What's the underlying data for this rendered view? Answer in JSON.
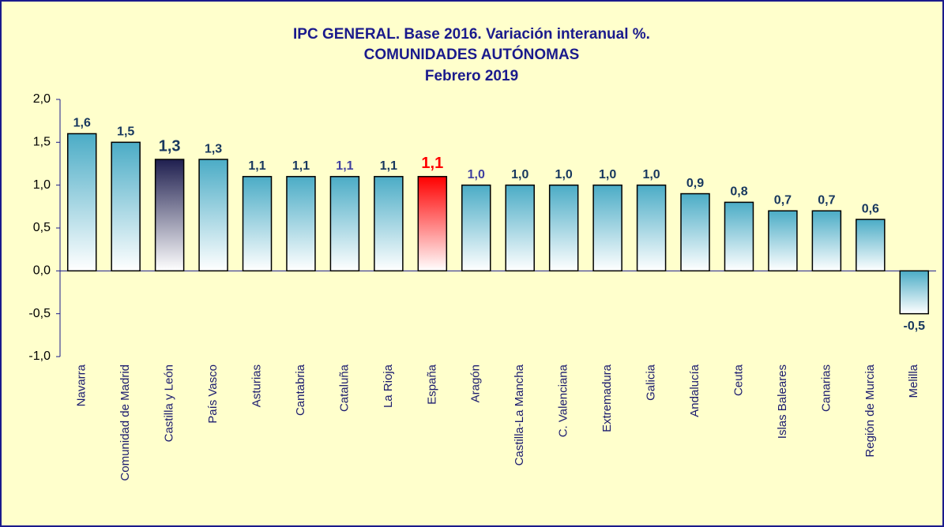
{
  "chart_data": {
    "type": "bar",
    "title": [
      "IPC GENERAL. Base 2016. Variación interanual %.",
      "COMUNIDADES AUTÓNOMAS",
      "Febrero 2019"
    ],
    "categories": [
      "Navarra",
      "Comunidad de Madrid",
      "Castilla y León",
      "País Vasco",
      "Asturias",
      "Cantabria",
      "Cataluña",
      "La Rioja",
      "España",
      "Aragón",
      "Castilla-La Mancha",
      "C. Valenciana",
      "Extremadura",
      "Galicia",
      "Andalucía",
      "Ceuta",
      "Islas Baleares",
      "Canarias",
      "Región de Murcia",
      "Melilla"
    ],
    "values": [
      1.6,
      1.5,
      1.3,
      1.3,
      1.1,
      1.1,
      1.1,
      1.1,
      1.1,
      1.0,
      1.0,
      1.0,
      1.0,
      1.0,
      0.9,
      0.8,
      0.7,
      0.7,
      0.6,
      -0.5
    ],
    "value_labels": [
      "1,6",
      "1,5",
      "1,3",
      "1,3",
      "1,1",
      "1,1",
      "1,1",
      "1,1",
      "1,1",
      "1,0",
      "1,0",
      "1,0",
      "1,0",
      "1,0",
      "0,9",
      "0,8",
      "0,7",
      "0,7",
      "0,6",
      "-0,5"
    ],
    "colors": [
      "#4bacc6",
      "#4bacc6",
      "#1f1f4f",
      "#4bacc6",
      "#4bacc6",
      "#4bacc6",
      "#4bacc6",
      "#4bacc6",
      "#ff0000",
      "#4bacc6",
      "#4bacc6",
      "#4bacc6",
      "#4bacc6",
      "#4bacc6",
      "#4bacc6",
      "#4bacc6",
      "#4bacc6",
      "#4bacc6",
      "#4bacc6",
      "#4bacc6"
    ],
    "value_label_colors": [
      "#17375e",
      "#17375e",
      "#17375e",
      "#17375e",
      "#17375e",
      "#17375e",
      "#4040a0",
      "#17375e",
      "#ff0000",
      "#4040a0",
      "#17375e",
      "#17375e",
      "#17375e",
      "#17375e",
      "#17375e",
      "#17375e",
      "#17375e",
      "#17375e",
      "#17375e",
      "#17375e"
    ],
    "ylim": [
      -1.0,
      2.0
    ],
    "yticks": [
      {
        "value": -1.0,
        "label": "-1,0"
      },
      {
        "value": -0.5,
        "label": "-0,5"
      },
      {
        "value": 0,
        "label": "0,0"
      },
      {
        "value": 0.5,
        "label": "0,5"
      },
      {
        "value": 1.0,
        "label": "1,0"
      },
      {
        "value": 1.5,
        "label": "1,5"
      },
      {
        "value": 2.0,
        "label": "2,0"
      }
    ]
  }
}
